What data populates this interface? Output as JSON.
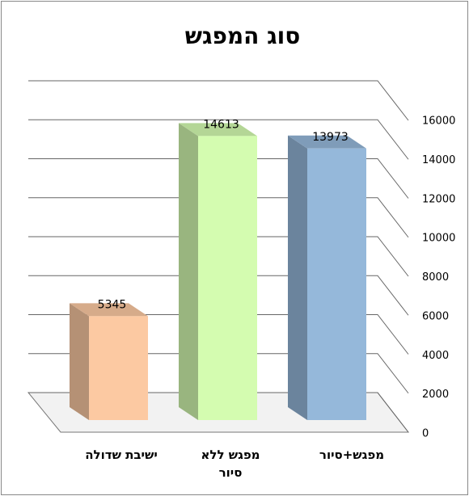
{
  "chart_data": {
    "type": "bar",
    "title": "סוג המפגש",
    "categories": [
      "ישיבת שדולה",
      "מפגש ללא סיור",
      "מפגש+סיור"
    ],
    "values": [
      5345,
      14613,
      13973
    ],
    "colors": [
      "#fcc9a2",
      "#d4fcb0",
      "#95b8da"
    ],
    "ylim": [
      0,
      16000
    ],
    "yticks": [
      0,
      2000,
      4000,
      6000,
      8000,
      10000,
      12000,
      14000,
      16000
    ],
    "grid": true
  }
}
